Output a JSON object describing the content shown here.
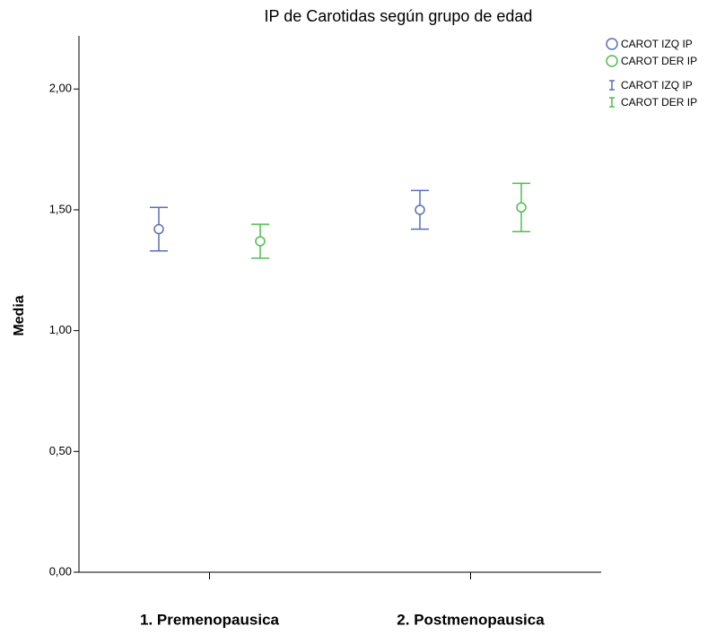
{
  "chart_data": {
    "type": "errorbar",
    "title": "IP de Carotidas según grupo de edad",
    "y_label": "Media",
    "categories": [
      "1. Premenopausica",
      "2. Postmenopausica"
    ],
    "series": [
      {
        "name": "CAROT IZQ IP",
        "color": "#5a6fb4",
        "values": [
          1.42,
          1.5
        ],
        "errors": [
          0.09,
          0.08
        ]
      },
      {
        "name": "CAROT DER IP",
        "color": "#4fbd4f",
        "values": [
          1.37,
          1.51
        ],
        "errors": [
          0.07,
          0.1
        ]
      }
    ],
    "ylim": [
      0,
      2.22
    ],
    "yticks": [
      {
        "value": 0,
        "label": "0,00"
      },
      {
        "value": 0.5,
        "label": "0,50"
      },
      {
        "value": 1,
        "label": "1,00"
      },
      {
        "value": 1.5,
        "label": "1,50"
      },
      {
        "value": 2,
        "label": "2,00"
      }
    ]
  }
}
